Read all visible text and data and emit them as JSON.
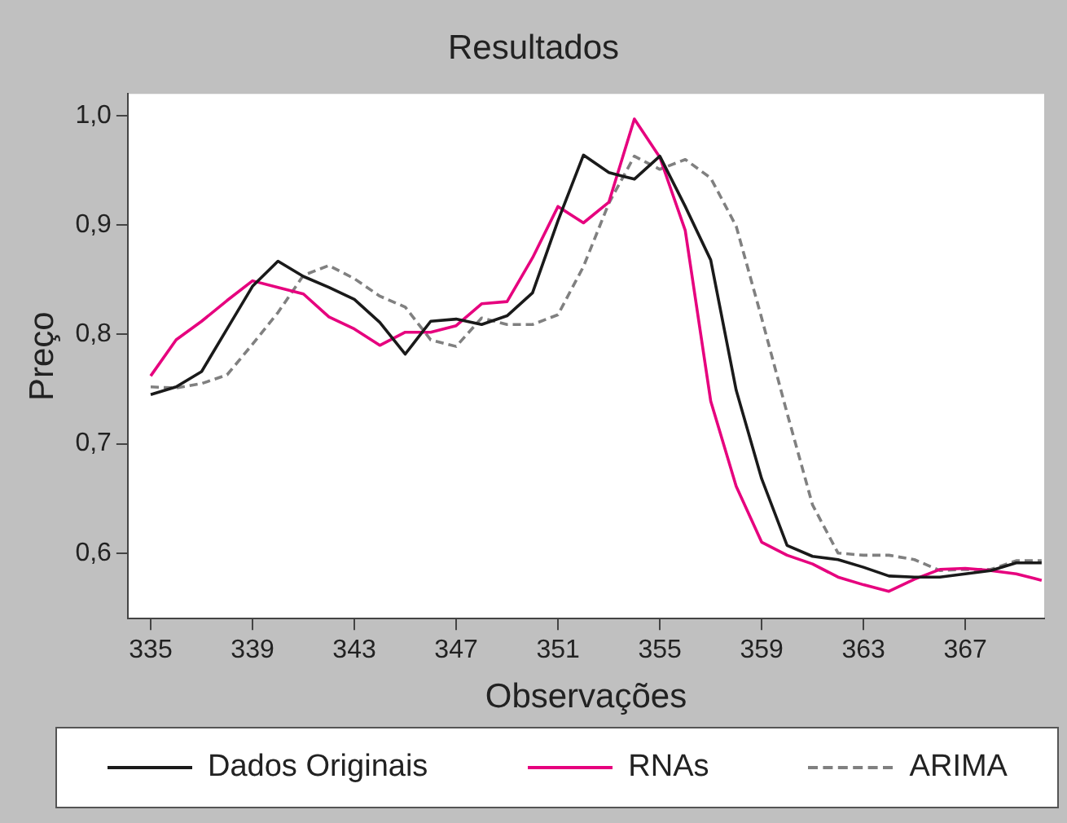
{
  "chart_data": {
    "type": "line",
    "title": "Resultados",
    "xlabel": "Observações",
    "ylabel": "Preço",
    "x": [
      335,
      336,
      337,
      338,
      339,
      340,
      341,
      342,
      343,
      344,
      345,
      346,
      347,
      348,
      349,
      350,
      351,
      352,
      353,
      354,
      355,
      356,
      357,
      358,
      359,
      360,
      361,
      362,
      363,
      364,
      365,
      366,
      367,
      368,
      369,
      370
    ],
    "series": [
      {
        "name": "Dados Originais",
        "color": "#1a1a1a",
        "line_style": "solid",
        "values": [
          0.745,
          0.752,
          0.766,
          0.805,
          0.844,
          0.867,
          0.853,
          0.843,
          0.832,
          0.811,
          0.782,
          0.812,
          0.814,
          0.809,
          0.817,
          0.838,
          0.904,
          0.964,
          0.948,
          0.942,
          0.963,
          0.917,
          0.868,
          0.749,
          0.668,
          0.607,
          0.597,
          0.594,
          0.587,
          0.579,
          0.578,
          0.578,
          0.581,
          0.584,
          0.591,
          0.591
        ]
      },
      {
        "name": "RNAs",
        "color": "#e6007e",
        "line_style": "solid",
        "values": [
          0.762,
          0.795,
          0.812,
          0.831,
          0.849,
          0.843,
          0.837,
          0.816,
          0.805,
          0.79,
          0.802,
          0.802,
          0.808,
          0.828,
          0.83,
          0.87,
          0.917,
          0.902,
          0.921,
          0.997,
          0.962,
          0.895,
          0.739,
          0.661,
          0.61,
          0.598,
          0.59,
          0.578,
          0.571,
          0.565,
          0.576,
          0.585,
          0.586,
          0.584,
          0.581,
          0.575
        ]
      },
      {
        "name": "ARIMA",
        "color": "#808080",
        "line_style": "dashed",
        "values": [
          0.752,
          0.751,
          0.755,
          0.763,
          0.791,
          0.82,
          0.854,
          0.863,
          0.851,
          0.835,
          0.825,
          0.795,
          0.789,
          0.815,
          0.809,
          0.809,
          0.818,
          0.862,
          0.92,
          0.963,
          0.951,
          0.96,
          0.943,
          0.899,
          0.815,
          0.728,
          0.644,
          0.6,
          0.598,
          0.598,
          0.594,
          0.584,
          0.585,
          0.585,
          0.593,
          0.593
        ]
      }
    ],
    "xlim": [
      334.1,
      370.1
    ],
    "xticks": [
      335,
      339,
      343,
      347,
      351,
      355,
      359,
      363,
      367
    ],
    "ylim": [
      0.54,
      1.02
    ],
    "yticks": [
      {
        "value": 0.6,
        "label": "0,6"
      },
      {
        "value": 0.7,
        "label": "0,7"
      },
      {
        "value": 0.8,
        "label": "0,8"
      },
      {
        "value": 0.9,
        "label": "0,9"
      },
      {
        "value": 1.0,
        "label": "1,0"
      }
    ],
    "grid": false,
    "legend": "bottom",
    "marker": "none"
  }
}
